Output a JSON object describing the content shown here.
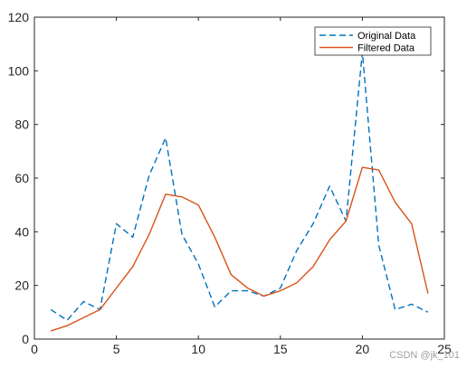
{
  "chart_data": {
    "type": "line",
    "xlim": [
      0,
      25
    ],
    "ylim": [
      0,
      120
    ],
    "x_ticks": [
      0,
      5,
      10,
      15,
      20,
      25
    ],
    "y_ticks": [
      0,
      20,
      40,
      60,
      80,
      100,
      120
    ],
    "grid": false,
    "legend_position": "top-right",
    "x": [
      1,
      2,
      3,
      4,
      5,
      6,
      7,
      8,
      9,
      10,
      11,
      12,
      13,
      14,
      15,
      16,
      17,
      18,
      19,
      20,
      21,
      22,
      23,
      24
    ],
    "series": [
      {
        "name": "Original Data",
        "style": "dashed",
        "color": "#0072bd",
        "values": [
          11,
          7,
          14,
          11,
          43,
          38,
          61,
          75,
          39,
          28,
          12,
          18,
          18,
          16,
          19,
          33,
          43,
          57,
          44,
          107,
          35,
          11,
          13,
          10
        ]
      },
      {
        "name": "Filtered Data",
        "style": "solid",
        "color": "#d95319",
        "values": [
          3,
          5,
          8,
          11,
          19,
          27,
          39,
          54,
          53,
          50,
          38,
          24,
          19,
          16,
          18,
          21,
          27,
          37,
          44,
          64,
          63,
          51,
          43,
          17
        ]
      }
    ]
  },
  "watermark": "CSDN @jk_101"
}
